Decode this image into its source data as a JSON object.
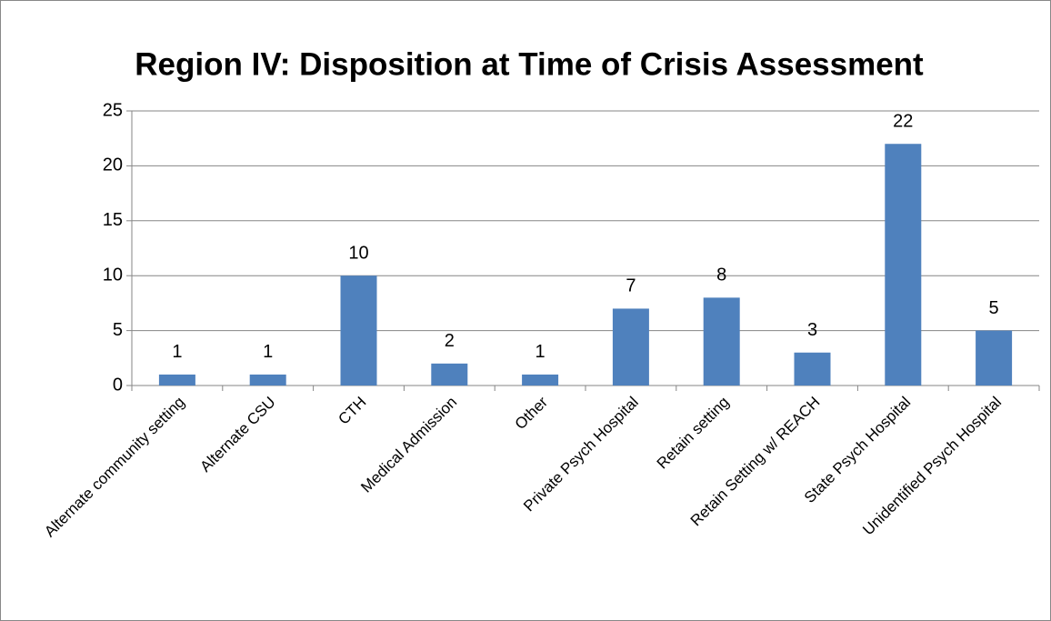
{
  "chart_data": {
    "type": "bar",
    "title": "Region IV: Disposition at Time of Crisis Assessment",
    "categories": [
      "Alternate community setting",
      "Alternate CSU",
      "CTH",
      "Medical Admission",
      "Other",
      "Private Psych Hospital",
      "Retain setting",
      "Retain Setting w/ REACH",
      "State Psych Hospital",
      "Unidentified Psych Hospital"
    ],
    "values": [
      1,
      1,
      10,
      2,
      1,
      7,
      8,
      3,
      22,
      5
    ],
    "color": "#4f81bd",
    "ylim": [
      0,
      25
    ],
    "yticks": [
      0,
      5,
      10,
      15,
      20,
      25
    ],
    "grid": true,
    "data_labels": true
  }
}
